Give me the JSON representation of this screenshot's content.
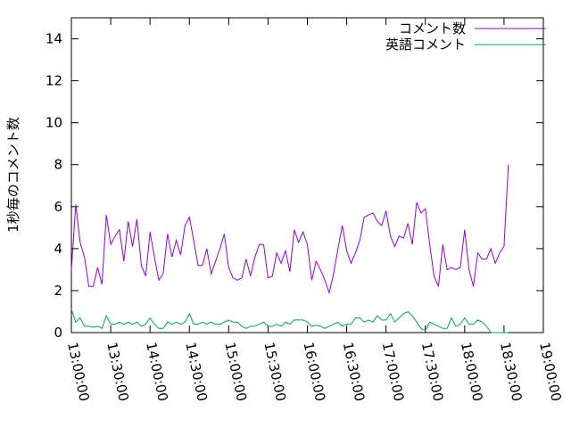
{
  "chart_data": {
    "type": "line",
    "y_label": "1秒毎のコメント数",
    "x": [
      "13:00:00",
      "13:03:20",
      "13:06:40",
      "13:10:00",
      "13:13:20",
      "13:16:40",
      "13:20:00",
      "13:23:20",
      "13:26:40",
      "13:30:00",
      "13:33:20",
      "13:36:40",
      "13:40:00",
      "13:43:20",
      "13:46:40",
      "13:50:00",
      "13:53:20",
      "13:56:40",
      "14:00:00",
      "14:03:20",
      "14:06:40",
      "14:10:00",
      "14:13:20",
      "14:16:40",
      "14:20:00",
      "14:23:20",
      "14:26:40",
      "14:30:00",
      "14:33:20",
      "14:36:40",
      "14:40:00",
      "14:43:20",
      "14:46:40",
      "14:50:00",
      "14:53:20",
      "14:56:40",
      "15:00:00",
      "15:03:20",
      "15:06:40",
      "15:10:00",
      "15:13:20",
      "15:16:40",
      "15:20:00",
      "15:23:20",
      "15:26:40",
      "15:30:00",
      "15:33:20",
      "15:36:40",
      "15:40:00",
      "15:43:20",
      "15:46:40",
      "15:50:00",
      "15:53:20",
      "15:56:40",
      "16:00:00",
      "16:03:20",
      "16:06:40",
      "16:10:00",
      "16:13:20",
      "16:16:40",
      "16:20:00",
      "16:23:20",
      "16:26:40",
      "16:30:00",
      "16:33:20",
      "16:36:40",
      "16:40:00",
      "16:43:20",
      "16:46:40",
      "16:50:00",
      "16:53:20",
      "16:56:40",
      "17:00:00",
      "17:03:20",
      "17:06:40",
      "17:10:00",
      "17:13:20",
      "17:16:40",
      "17:20:00",
      "17:23:20",
      "17:26:40",
      "17:30:00",
      "17:33:20",
      "17:36:40",
      "17:40:00",
      "17:43:20",
      "17:46:40",
      "17:50:00",
      "17:53:20",
      "17:56:40",
      "18:00:00",
      "18:03:20",
      "18:06:40",
      "18:10:00",
      "18:13:20",
      "18:16:40",
      "18:20:00",
      "18:23:20",
      "18:26:40",
      "18:30:00",
      "18:33:20"
    ],
    "series": [
      {
        "name": "コメント数",
        "color": "#9400d3",
        "values": [
          3.0,
          6.1,
          4.3,
          3.6,
          2.2,
          2.2,
          3.1,
          2.3,
          5.6,
          4.2,
          4.6,
          4.9,
          3.4,
          5.3,
          4.1,
          5.4,
          3.2,
          2.7,
          4.8,
          3.6,
          2.5,
          2.8,
          4.7,
          3.6,
          4.4,
          3.7,
          5.1,
          5.5,
          4.4,
          3.2,
          3.2,
          4.0,
          2.8,
          3.4,
          4.0,
          4.7,
          3.1,
          2.6,
          2.5,
          2.6,
          3.5,
          2.7,
          3.6,
          4.2,
          4.2,
          2.6,
          2.7,
          3.8,
          3.3,
          3.9,
          2.9,
          4.9,
          4.3,
          4.8,
          4.2,
          2.5,
          3.4,
          3.0,
          2.5,
          1.9,
          2.8,
          4.0,
          5.1,
          3.9,
          3.3,
          3.8,
          4.4,
          5.5,
          5.6,
          5.7,
          5.3,
          5.1,
          5.8,
          4.6,
          4.1,
          4.6,
          4.5,
          5.2,
          4.2,
          6.2,
          5.7,
          5.9,
          4.2,
          2.7,
          2.2,
          4.2,
          3.0,
          3.1,
          3.0,
          3.1,
          4.9,
          3.0,
          2.2,
          3.8,
          3.5,
          3.5,
          4.0,
          3.3,
          3.8,
          4.1,
          8.0
        ]
      },
      {
        "name": "英語コメント",
        "color": "#009e73",
        "values": [
          1.1,
          0.5,
          0.7,
          0.3,
          0.3,
          0.25,
          0.3,
          0.2,
          0.8,
          0.4,
          0.4,
          0.5,
          0.4,
          0.5,
          0.4,
          0.5,
          0.3,
          0.4,
          0.7,
          0.4,
          0.2,
          0.2,
          0.5,
          0.4,
          0.5,
          0.4,
          0.5,
          0.9,
          0.4,
          0.4,
          0.5,
          0.4,
          0.5,
          0.4,
          0.4,
          0.5,
          0.6,
          0.5,
          0.5,
          0.3,
          0.2,
          0.3,
          0.3,
          0.4,
          0.5,
          0.3,
          0.3,
          0.4,
          0.3,
          0.5,
          0.4,
          0.6,
          0.6,
          0.6,
          0.5,
          0.3,
          0.35,
          0.3,
          0.2,
          0.3,
          0.4,
          0.5,
          0.3,
          0.4,
          0.4,
          0.7,
          0.7,
          0.5,
          0.6,
          0.5,
          0.8,
          0.6,
          0.6,
          0.9,
          0.5,
          0.7,
          0.9,
          1.0,
          0.8,
          0.5,
          0.2,
          0.1,
          0.5,
          0.4,
          0.3,
          0.2,
          0.2,
          0.7,
          0.3,
          0.4,
          0.7,
          0.4,
          0.4,
          0.6,
          0.5,
          0.3,
          0.0,
          0.0,
          0.0,
          0.0,
          0.0
        ]
      }
    ],
    "xlim": [
      "13:00:00",
      "19:00:00"
    ],
    "xticks": [
      "13:00:00",
      "13:30:00",
      "14:00:00",
      "14:30:00",
      "15:00:00",
      "15:30:00",
      "16:00:00",
      "16:30:00",
      "17:00:00",
      "17:30:00",
      "18:00:00",
      "18:30:00",
      "19:00:00"
    ],
    "ylim": [
      0,
      15
    ],
    "yticks": [
      0,
      2,
      4,
      6,
      8,
      10,
      12,
      14
    ],
    "legend": "top right"
  }
}
